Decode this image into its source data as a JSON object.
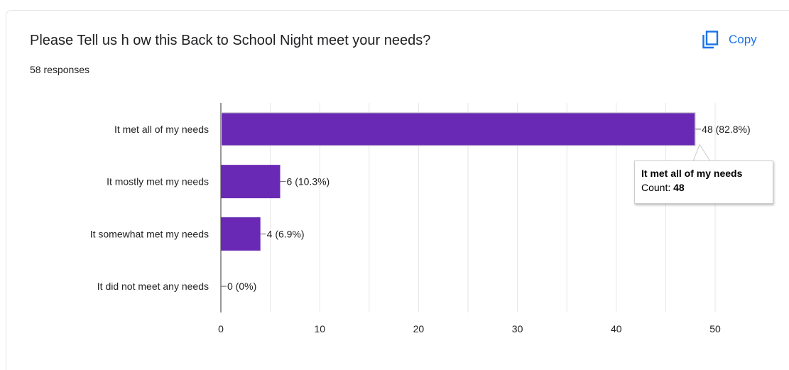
{
  "header": {
    "question": "Please Tell us h ow this Back to School Night meet your needs?",
    "responses": "58 responses",
    "copy_label": "Copy",
    "copy_icon": "copy-icon"
  },
  "chart_data": {
    "type": "bar",
    "orientation": "horizontal",
    "categories": [
      "It met all of my needs",
      "It mostly met my needs",
      "It somewhat met my needs",
      "It did not meet any needs"
    ],
    "values": [
      48,
      6,
      4,
      0
    ],
    "data_labels": [
      "48 (82.8%)",
      "6 (10.3%)",
      "4 (6.9%)",
      "0 (0%)"
    ],
    "xlim": [
      0,
      50
    ],
    "xticks": [
      0,
      10,
      20,
      30,
      40,
      50
    ],
    "grid": true,
    "bar_color": "#6a29b5"
  },
  "tooltip": {
    "title": "It met all of my needs",
    "count_label": "Count: ",
    "count_value": "48"
  }
}
